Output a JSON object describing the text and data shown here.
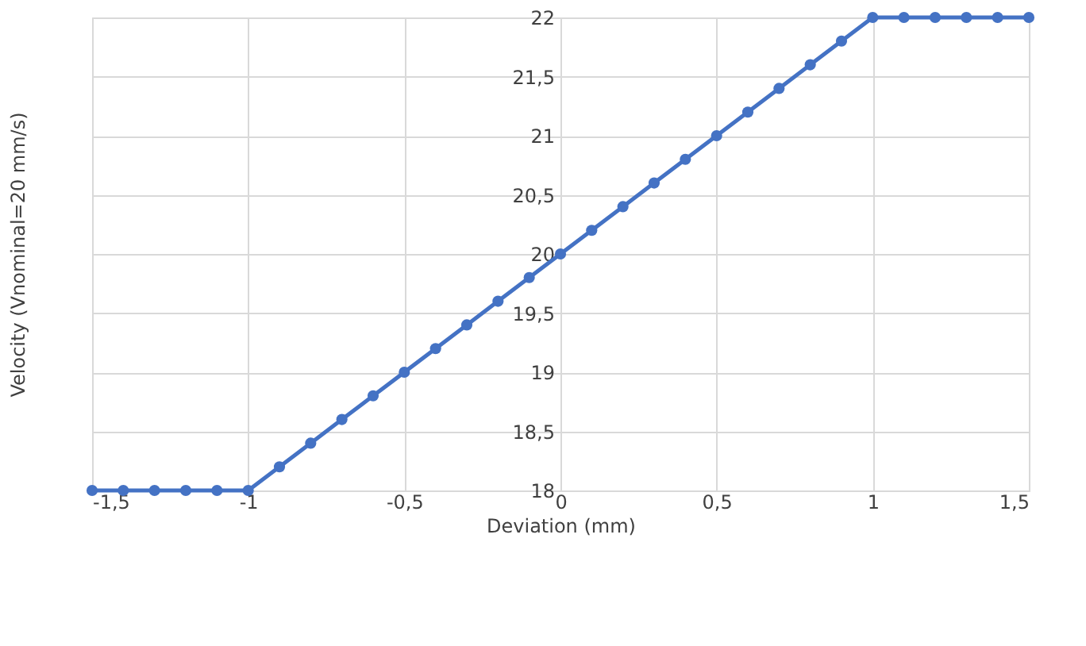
{
  "chart_data": {
    "type": "line",
    "xlabel": "Deviation (mm)",
    "ylabel": "Velocity (Vnominal=20 mm/s)",
    "x": [
      -1.5,
      -1.4,
      -1.3,
      -1.2,
      -1.1,
      -1.0,
      -0.9,
      -0.8,
      -0.7,
      -0.6,
      -0.5,
      -0.4,
      -0.3,
      -0.2,
      -0.1,
      0,
      0.1,
      0.2,
      0.3,
      0.4,
      0.5,
      0.6,
      0.7,
      0.8,
      0.9,
      1.0,
      1.1,
      1.2,
      1.3,
      1.4,
      1.5
    ],
    "series": [
      {
        "color": "#4472c4",
        "values": [
          18,
          18,
          18,
          18,
          18,
          18,
          18.2,
          18.4,
          18.6,
          18.8,
          19,
          19.2,
          19.4,
          19.6,
          19.8,
          20,
          20.2,
          20.4,
          20.6,
          20.8,
          21,
          21.2,
          21.4,
          21.6,
          21.8,
          22,
          22,
          22,
          22,
          22,
          22
        ]
      }
    ],
    "xlim": [
      -1.5,
      1.5
    ],
    "ylim": [
      18,
      22
    ],
    "xticks": [
      {
        "value": -1.5,
        "label": "-1,5"
      },
      -1,
      {
        "value": -0.5,
        "label": "-0,5"
      },
      0,
      {
        "value": 0.5,
        "label": "0,5"
      },
      1,
      {
        "value": 1.5,
        "label": "1,5"
      }
    ],
    "yticks": [
      18,
      {
        "value": 18.5,
        "label": "18,5"
      },
      19,
      {
        "value": 19.5,
        "label": "19,5"
      },
      20,
      {
        "value": 20.5,
        "label": "20,5"
      },
      21,
      {
        "value": 21.5,
        "label": "21,5"
      },
      22
    ],
    "grid": true,
    "marker": "circle",
    "line_style": "solid"
  }
}
